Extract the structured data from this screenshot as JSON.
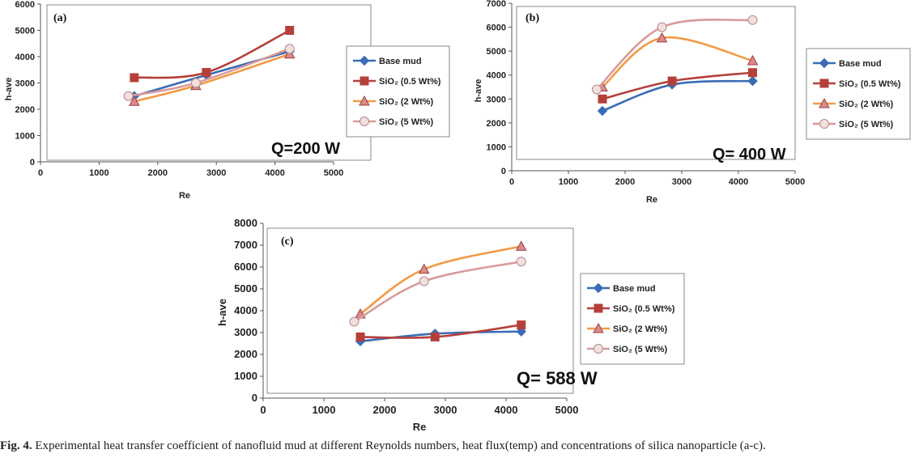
{
  "series_styles": [
    {
      "color": "#3a6cb5",
      "marker": "diamond"
    },
    {
      "color": "#b5403a",
      "marker": "square"
    },
    {
      "color": "#f29a45",
      "marker": "triangle"
    },
    {
      "color": "#d99a9a",
      "marker": "circle"
    }
  ],
  "legend_labels": [
    "Base mud",
    "SiO₂ (0.5 Wt%)",
    "SiO₂ (2 Wt%)",
    "SiO₂ (5 Wt%)"
  ],
  "caption": {
    "label": "Fig. 4.",
    "text": " Experimental heat transfer coefficient of nanofluid mud at different Reynolds numbers, heat flux(temp) and concentrations of silica nanoparticle (a-c)."
  },
  "chart_data": [
    {
      "type": "line",
      "panel": "(a)",
      "annotation": "Q=200 W",
      "xlabel": "Re",
      "ylabel": "h-ave",
      "xlim": [
        0,
        5000
      ],
      "ylim": [
        0,
        6000
      ],
      "xticks": [
        0,
        1000,
        2000,
        3000,
        4000,
        5000
      ],
      "yticks": [
        0,
        1000,
        2000,
        3000,
        4000,
        5000,
        6000
      ],
      "legend_position": "right",
      "series": [
        {
          "name": "Base mud",
          "x": [
            1600,
            2830,
            4250
          ],
          "y": [
            2500,
            3300,
            4200
          ]
        },
        {
          "name": "SiO₂ (0.5 Wt%)",
          "x": [
            1600,
            2830,
            4250
          ],
          "y": [
            3200,
            3400,
            5000
          ]
        },
        {
          "name": "SiO₂ (2 Wt%)",
          "x": [
            1600,
            2650,
            4250
          ],
          "y": [
            2300,
            2900,
            4100
          ]
        },
        {
          "name": "SiO₂ (5 Wt%)",
          "x": [
            1500,
            2650,
            4250
          ],
          "y": [
            2500,
            3000,
            4300
          ]
        }
      ]
    },
    {
      "type": "line",
      "panel": "(b)",
      "annotation": "Q= 400 W",
      "xlabel": "Re",
      "ylabel": "h-ave",
      "xlim": [
        0,
        5000
      ],
      "ylim": [
        0,
        7000
      ],
      "xticks": [
        0,
        1000,
        2000,
        3000,
        4000,
        5000
      ],
      "yticks": [
        0,
        1000,
        2000,
        3000,
        4000,
        5000,
        6000,
        7000
      ],
      "legend_position": "right",
      "series": [
        {
          "name": "Base mud",
          "x": [
            1600,
            2830,
            4250
          ],
          "y": [
            2500,
            3600,
            3750
          ]
        },
        {
          "name": "SiO₂ (0.5 Wt%)",
          "x": [
            1600,
            2830,
            4250
          ],
          "y": [
            3000,
            3750,
            4100
          ]
        },
        {
          "name": "SiO₂ (2 Wt%)",
          "x": [
            1600,
            2650,
            4250
          ],
          "y": [
            3500,
            5550,
            4600
          ]
        },
        {
          "name": "SiO₂ (5 Wt%)",
          "x": [
            1500,
            2650,
            4250
          ],
          "y": [
            3400,
            6000,
            6300
          ]
        }
      ]
    },
    {
      "type": "line",
      "panel": "(c)",
      "annotation": "Q= 588 W",
      "xlabel": "Re",
      "ylabel": "h-ave",
      "xlim": [
        0,
        5000
      ],
      "ylim": [
        0,
        8000
      ],
      "xticks": [
        0,
        1000,
        2000,
        3000,
        4000,
        5000
      ],
      "yticks": [
        0,
        1000,
        2000,
        3000,
        4000,
        5000,
        6000,
        7000,
        8000
      ],
      "legend_position": "right",
      "series": [
        {
          "name": "Base mud",
          "x": [
            1600,
            2830,
            4250
          ],
          "y": [
            2600,
            2950,
            3050
          ]
        },
        {
          "name": "SiO₂ (0.5 Wt%)",
          "x": [
            1600,
            2830,
            4250
          ],
          "y": [
            2800,
            2800,
            3350
          ]
        },
        {
          "name": "SiO₂ (2 Wt%)",
          "x": [
            1600,
            2650,
            4250
          ],
          "y": [
            3850,
            5900,
            6950
          ]
        },
        {
          "name": "SiO₂ (5 Wt%)",
          "x": [
            1500,
            2650,
            4250
          ],
          "y": [
            3500,
            5350,
            6250
          ]
        }
      ]
    }
  ]
}
